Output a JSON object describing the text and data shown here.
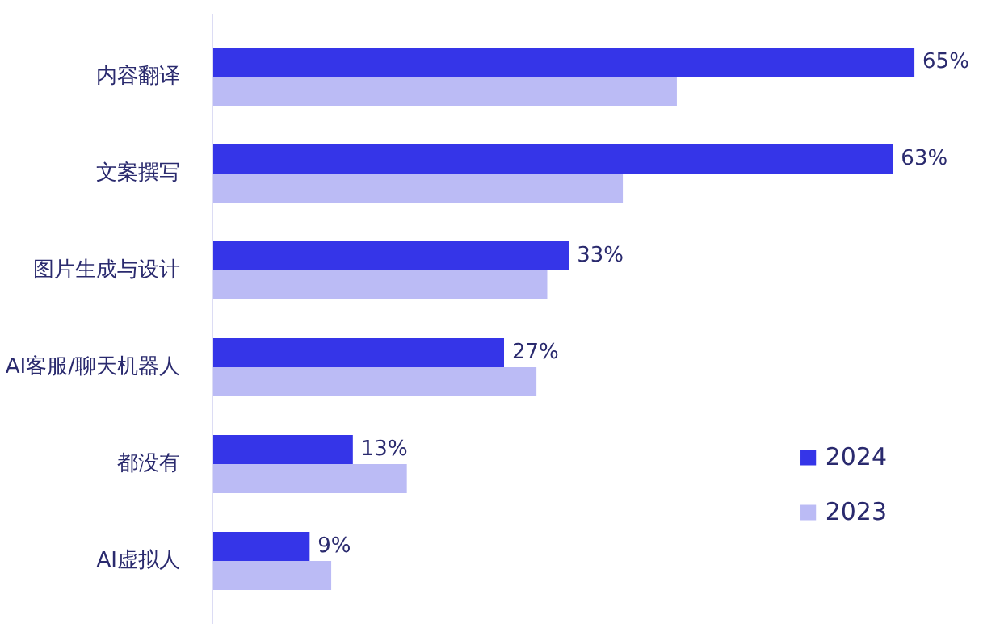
{
  "chart_data": {
    "type": "bar",
    "orientation": "horizontal",
    "categories": [
      "内容翻译",
      "文案撰写",
      "图片生成与设计",
      "AI客服/聊天机器人",
      "都没有",
      "AI虚拟人"
    ],
    "series": [
      {
        "name": "2024",
        "color": "#3535e8",
        "values": [
          65,
          63,
          33,
          27,
          13,
          9
        ],
        "value_labels": [
          "65%",
          "63%",
          "33%",
          "27%",
          "13%",
          "9%"
        ]
      },
      {
        "name": "2023",
        "color": "#bbbbf5",
        "values": [
          43,
          38,
          31,
          30,
          18,
          11
        ]
      }
    ],
    "tick_labels": "y",
    "grid": false,
    "legend": "bottom right"
  }
}
